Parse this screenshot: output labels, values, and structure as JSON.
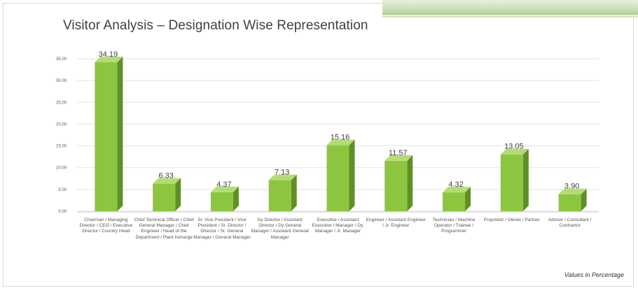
{
  "chart_data": {
    "type": "bar",
    "title": "Visitor Analysis – Designation Wise Representation",
    "categories": [
      "Chairman / Managing Director / CEO / Executive Director / Country Head",
      "Chief Technical Officer / Chief General Manager / Chief Engineer / Head of the Department / Plant Incharge",
      "Sr. Vice President / Vice President / Sr. Director / Director / Sr. General Manager / General Manager",
      "Dy Director / Assistant Director / Dy General Manager / Assistant General Manager",
      "Executive / Assistant Executive / Manager / Dy. Manager / Jr. Manager",
      "Engineer / Assistant Engineer / Jr. Engineer",
      "Technician / Machine Operator / Trainee / Programmer",
      "Proprietor / Owner / Partner",
      "Advisor / Consultant / Contractor"
    ],
    "values": [
      34.19,
      6.33,
      4.37,
      7.13,
      15.16,
      11.57,
      4.32,
      13.05,
      3.9
    ],
    "value_labels": [
      "34.19",
      "6.33",
      "4.37",
      "7.13",
      "15.16",
      "11.57",
      "4.32",
      "13.05",
      "3.90"
    ],
    "ylim": [
      0,
      35
    ],
    "yticks": [
      0,
      5,
      10,
      15,
      20,
      25,
      30,
      35
    ],
    "ytick_labels": [
      "0.00",
      "5.00",
      "10.00",
      "15.00",
      "20.00",
      "25.00",
      "30.00",
      "35.00"
    ],
    "grid": true,
    "bar_style": "3d",
    "colors": {
      "bar_front": "#8cc63f",
      "bar_side": "#5f8f26",
      "bar_top": "#b5dc74",
      "grid": "#e3e3e3"
    },
    "footnote": "Values in Percentage"
  }
}
